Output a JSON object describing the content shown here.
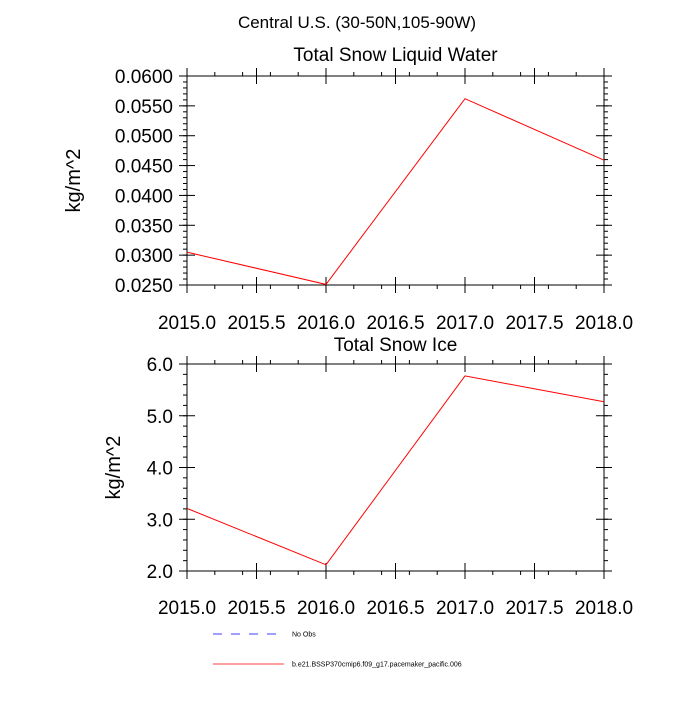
{
  "figure": {
    "suptitle": "Central U.S. (30-50N,105-90W)"
  },
  "colors": {
    "series": "#ff0000",
    "obs": "#0000ff",
    "axes": "#000000"
  },
  "chart_data": [
    {
      "type": "line",
      "title": "Total Snow Liquid Water",
      "xlabel": "",
      "ylabel": "kg/m^2",
      "xlim": [
        2015.0,
        2018.0
      ],
      "ylim": [
        0.025,
        0.06
      ],
      "xticks": [
        "2015.0",
        "2015.5",
        "2016.0",
        "2016.5",
        "2017.0",
        "2017.5",
        "2018.0"
      ],
      "yticks": [
        "0.0250",
        "0.0300",
        "0.0350",
        "0.0400",
        "0.0450",
        "0.0500",
        "0.0550",
        "0.0600"
      ],
      "x": [
        2015,
        2016,
        2017,
        2018
      ],
      "series": [
        {
          "name": "b.e21.BSSP370cmip6.f09_g17.pacemaker_pacific.006",
          "values": [
            0.0305,
            0.0251,
            0.0562,
            0.0459
          ]
        }
      ],
      "grid": false
    },
    {
      "type": "line",
      "title": "Total Snow Ice",
      "xlabel": "",
      "ylabel": "kg/m^2",
      "xlim": [
        2015.0,
        2018.0
      ],
      "ylim": [
        2.0,
        6.0
      ],
      "xticks": [
        "2015.0",
        "2015.5",
        "2016.0",
        "2016.5",
        "2017.0",
        "2017.5",
        "2018.0"
      ],
      "yticks": [
        "2.0",
        "3.0",
        "4.0",
        "5.0",
        "6.0"
      ],
      "x": [
        2015,
        2016,
        2017,
        2018
      ],
      "series": [
        {
          "name": "b.e21.BSSP370cmip6.f09_g17.pacemaker_pacific.006",
          "values": [
            3.21,
            2.12,
            5.77,
            5.27
          ]
        }
      ],
      "grid": false
    }
  ],
  "legend": {
    "placement": "bottom",
    "items": [
      {
        "label": "No Obs",
        "style": "dashed",
        "color": "#0000ff"
      },
      {
        "label": "b.e21.BSSP370cmip6.f09_g17.pacemaker_pacific.006",
        "style": "solid",
        "color": "#ff0000"
      }
    ]
  }
}
